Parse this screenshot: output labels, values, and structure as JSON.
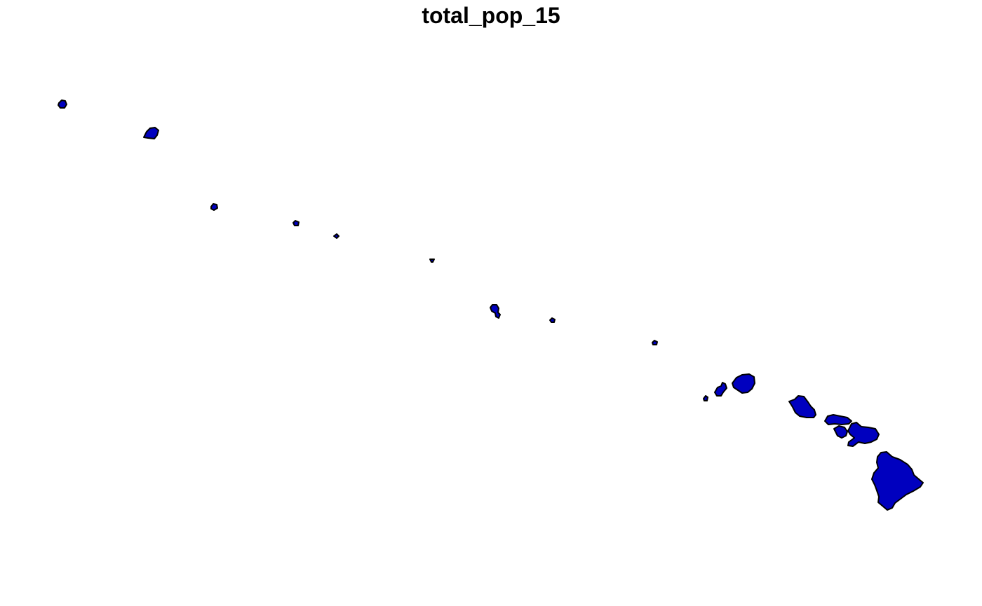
{
  "title": "total_pop_15",
  "fill_color": "#0000BF",
  "stroke_color": "#000000",
  "islands": [
    "kure-atoll",
    "midway-atoll",
    "pearl-and-hermes-atoll",
    "lisianski-island",
    "laysan-island",
    "gardner-pinnacles",
    "french-frigate-shoals",
    "necker-island",
    "nihoa",
    "niihau",
    "kauai",
    "oahu",
    "molokai",
    "lanai",
    "kahoolawe",
    "maui",
    "hawaii-big-island"
  ]
}
